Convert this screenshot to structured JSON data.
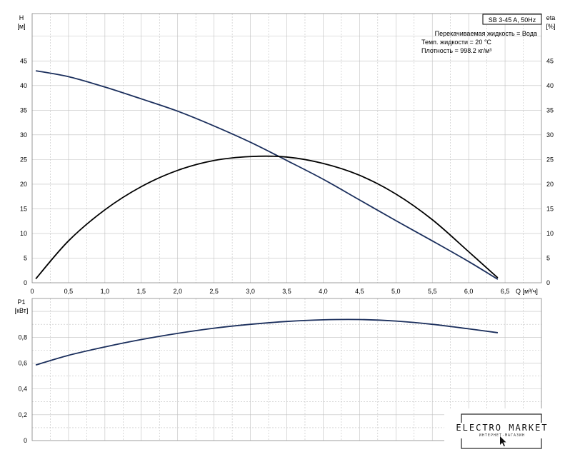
{
  "header": {
    "title": "SB 3-45 A, 50Hz",
    "info_lines": [
      "Перекачиваемая жидкость = Вода",
      "Темп. жидкости = 20 °C",
      "Плотность = 998.2 кг/м³"
    ]
  },
  "logo": {
    "text": "ELECTRO MARKET",
    "subtitle": "ИНТЕРНЕТ-МАГАЗИН"
  },
  "colors": {
    "head_curve": "#1a2e5c",
    "eta_curve": "#000000",
    "power_curve": "#1a2e5c",
    "grid": "#c0c0c0"
  },
  "chart_data": [
    {
      "type": "line",
      "y_label": "H",
      "y_unit": "[м]",
      "y2_label": "eta",
      "y2_unit": "[%]",
      "x_label": "Q [м³/ч]",
      "xlim": [
        0,
        6.5
      ],
      "ylim": [
        0,
        50
      ],
      "x_ticks": [
        "0",
        "0,5",
        "1,0",
        "1,5",
        "2,0",
        "2,5",
        "3,0",
        "3,5",
        "4,0",
        "4,5",
        "5,0",
        "5,5",
        "6,0",
        "6,5"
      ],
      "y_ticks": [
        "0",
        "5",
        "10",
        "15",
        "20",
        "25",
        "30",
        "35",
        "40",
        "45"
      ],
      "grid": true,
      "series": [
        {
          "name": "H",
          "x": [
            0.05,
            0.5,
            1.0,
            1.5,
            2.0,
            2.5,
            3.0,
            3.5,
            4.0,
            4.5,
            5.0,
            5.5,
            6.0,
            6.4
          ],
          "values": [
            43.0,
            41.8,
            39.7,
            37.3,
            34.8,
            31.8,
            28.5,
            24.8,
            21.0,
            16.8,
            12.6,
            8.5,
            4.3,
            0.7
          ]
        },
        {
          "name": "eta",
          "x": [
            0.05,
            0.5,
            1.0,
            1.5,
            2.0,
            2.5,
            3.0,
            3.5,
            4.0,
            4.5,
            5.0,
            5.5,
            6.0,
            6.4
          ],
          "values": [
            0.8,
            8.5,
            14.8,
            19.5,
            22.8,
            24.8,
            25.6,
            25.5,
            24.2,
            21.8,
            18.0,
            12.8,
            6.3,
            1.0
          ]
        }
      ]
    },
    {
      "type": "line",
      "y_label": "P1",
      "y_unit": "[кВт]",
      "xlim": [
        0,
        6.5
      ],
      "ylim": [
        0,
        1.0
      ],
      "y_ticks": [
        "0",
        "0,2",
        "0,4",
        "0,6",
        "0,8"
      ],
      "grid": true,
      "series": [
        {
          "name": "P1",
          "x": [
            0.05,
            0.5,
            1.0,
            1.5,
            2.0,
            2.5,
            3.0,
            3.5,
            4.0,
            4.5,
            5.0,
            5.5,
            6.0,
            6.4
          ],
          "values": [
            0.585,
            0.66,
            0.725,
            0.782,
            0.83,
            0.87,
            0.9,
            0.922,
            0.935,
            0.937,
            0.925,
            0.9,
            0.865,
            0.835
          ]
        }
      ]
    }
  ]
}
